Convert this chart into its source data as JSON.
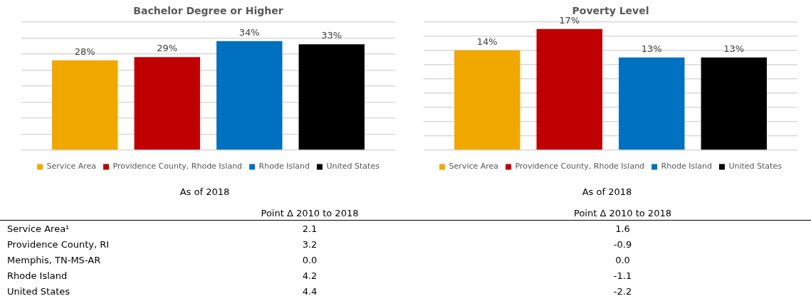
{
  "chart_data": [
    {
      "type": "bar",
      "title": "Bachelor Degree or Higher",
      "categories": [
        null
      ],
      "series": [
        {
          "name": "Service Area",
          "color": "#f0a800",
          "values": [
            28
          ],
          "value_labels": [
            "28%"
          ]
        },
        {
          "name": "Providence County, Rhode Island",
          "color": "#c00000",
          "values": [
            29
          ],
          "value_labels": [
            "29%"
          ]
        },
        {
          "name": "Rhode Island",
          "color": "#0070c0",
          "values": [
            34
          ],
          "value_labels": [
            "34%"
          ]
        },
        {
          "name": "United States",
          "color": "#000000",
          "values": [
            33
          ],
          "value_labels": [
            "33%"
          ]
        }
      ],
      "ylim": [
        0,
        40
      ],
      "yticks": [
        0,
        5,
        10,
        15,
        20,
        25,
        30,
        35,
        40
      ],
      "grid": "y",
      "tick_labels": false,
      "legend": "bottom",
      "annotations": [
        "As of 2018"
      ]
    },
    {
      "type": "bar",
      "title": "Poverty Level",
      "categories": [
        null
      ],
      "series": [
        {
          "name": "Service Area",
          "color": "#f0a800",
          "values": [
            14
          ],
          "value_labels": [
            "14%"
          ]
        },
        {
          "name": "Providence County, Rhode Island",
          "color": "#c00000",
          "values": [
            17
          ],
          "value_labels": [
            "17%"
          ]
        },
        {
          "name": "Rhode Island",
          "color": "#0070c0",
          "values": [
            13
          ],
          "value_labels": [
            "13%"
          ]
        },
        {
          "name": "United States",
          "color": "#000000",
          "values": [
            13
          ],
          "value_labels": [
            "13%"
          ]
        }
      ],
      "ylim": [
        0,
        18
      ],
      "yticks": [
        0,
        2,
        4,
        6,
        8,
        10,
        12,
        14,
        16,
        18
      ],
      "grid": "y",
      "tick_labels": false,
      "legend": "bottom",
      "annotations": [
        "As of 2018"
      ]
    },
    {
      "type": "other",
      "categories": [
        "Service Area¹",
        "Providence County, RI",
        "Memphis, TN-MS-AR",
        "Rhode Island",
        "United States"
      ],
      "series": [
        {
          "name": "Point Δ 2010 to 2018",
          "values": [
            2.1,
            3.2,
            0.0,
            4.2,
            4.4
          ],
          "value_labels": [
            "2.1",
            "3.2",
            "0.0",
            "4.2",
            "4.4"
          ]
        },
        {
          "name": "Point Δ 2010 to 2018",
          "values": [
            1.6,
            -0.9,
            0.0,
            -1.1,
            -2.2
          ],
          "value_labels": [
            "1.6",
            "-0.9",
            "0.0",
            "-1.1",
            "-2.2"
          ]
        }
      ]
    }
  ]
}
